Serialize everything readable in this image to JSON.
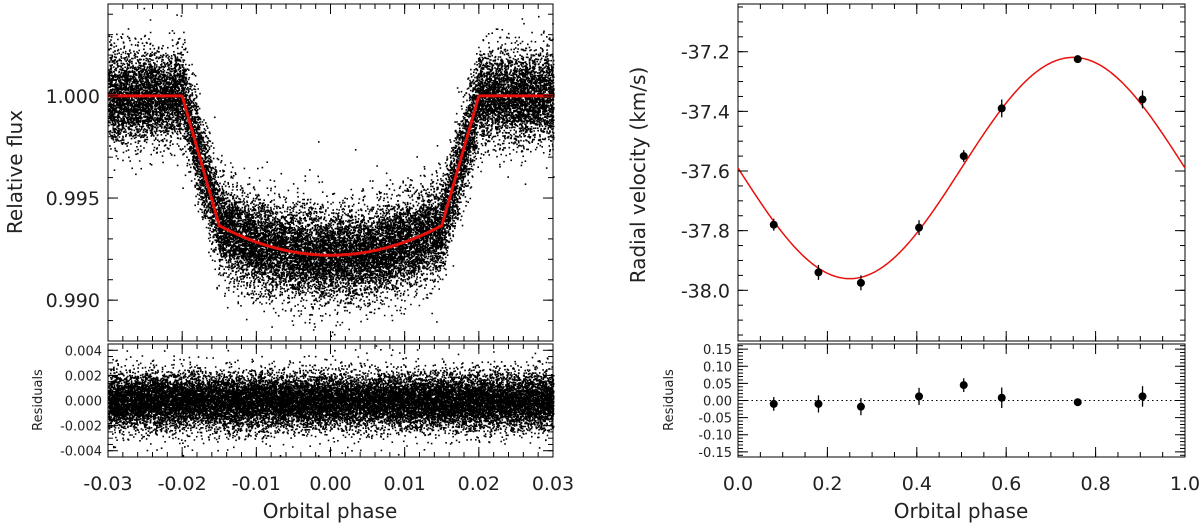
{
  "chart_data": [
    {
      "type": "scatter",
      "panel": "light-curve",
      "ylabel": "Relative flux",
      "xlim": [
        -0.03,
        0.03
      ],
      "ylim": [
        0.988,
        1.0045
      ],
      "yticks": [
        "1.000",
        "0.995",
        "0.990"
      ],
      "ytick_values": [
        1.0,
        0.995,
        0.99
      ],
      "series": [
        {
          "role": "data",
          "color": "#000000",
          "scatter_sigma": 0.0011,
          "samples": 22000
        },
        {
          "role": "model",
          "color": "#e8100a",
          "x": [
            -0.03,
            -0.02,
            -0.015,
            -0.01,
            -0.005,
            0.0,
            0.005,
            0.01,
            0.015,
            0.02,
            0.03
          ],
          "y": [
            1.0,
            1.0,
            0.99365,
            0.99275,
            0.99232,
            0.9922,
            0.99232,
            0.99275,
            0.99365,
            1.0,
            1.0
          ]
        }
      ]
    },
    {
      "type": "scatter",
      "panel": "light-curve-residuals",
      "ylabel": "Residuals",
      "xlabel": "Orbital phase",
      "xlim": [
        -0.03,
        0.03
      ],
      "ylim": [
        -0.0045,
        0.0045
      ],
      "yticks": [
        "0.004",
        "0.002",
        "0.000",
        "-0.002",
        "-0.004"
      ],
      "ytick_values": [
        0.004,
        0.002,
        0.0,
        -0.002,
        -0.004
      ],
      "xticks": [
        "-0.03",
        "-0.02",
        "-0.01",
        "0.00",
        "0.01",
        "0.02",
        "0.03"
      ],
      "xtick_values": [
        -0.03,
        -0.02,
        -0.01,
        0.0,
        0.01,
        0.02,
        0.03
      ],
      "series": [
        {
          "role": "residuals",
          "color": "#000000",
          "scatter_sigma": 0.0011,
          "samples": 22000
        }
      ]
    },
    {
      "type": "scatter",
      "panel": "radial-velocity",
      "ylabel": "Radial velocity (km/s)",
      "xlim": [
        0.0,
        1.0
      ],
      "ylim": [
        -38.17,
        -37.04
      ],
      "yticks": [
        "-37.2",
        "-37.4",
        "-37.6",
        "-37.8",
        "-38.0"
      ],
      "ytick_values": [
        -37.2,
        -37.4,
        -37.6,
        -37.8,
        -38.0
      ],
      "series": [
        {
          "role": "data",
          "color": "#000000",
          "x": [
            0.08,
            0.18,
            0.275,
            0.405,
            0.505,
            0.59,
            0.76,
            0.905
          ],
          "y": [
            -37.78,
            -37.94,
            -37.975,
            -37.79,
            -37.55,
            -37.39,
            -37.225,
            -37.36
          ],
          "err": [
            0.02,
            0.025,
            0.025,
            0.025,
            0.02,
            0.03,
            0.008,
            0.03
          ]
        },
        {
          "role": "model",
          "color": "#e8100a",
          "gamma": -37.59,
          "amplitude": 0.371,
          "phase_of_minimum": 0.25
        }
      ]
    },
    {
      "type": "scatter",
      "panel": "radial-velocity-residuals",
      "ylabel": "Residuals",
      "xlabel": "Orbital phase",
      "xlim": [
        0.0,
        1.0
      ],
      "ylim": [
        -0.165,
        0.165
      ],
      "yticks": [
        "0.15",
        "0.10",
        "0.05",
        "0.00",
        "-0.05",
        "-0.10",
        "-0.15"
      ],
      "ytick_values": [
        0.15,
        0.1,
        0.05,
        0.0,
        -0.05,
        -0.1,
        -0.15
      ],
      "xticks": [
        "0.0",
        "0.2",
        "0.4",
        "0.6",
        "0.8",
        "1.0"
      ],
      "xtick_values": [
        0.0,
        0.2,
        0.4,
        0.6,
        0.8,
        1.0
      ],
      "series": [
        {
          "role": "residuals",
          "color": "#000000",
          "x": [
            0.08,
            0.18,
            0.275,
            0.405,
            0.505,
            0.59,
            0.76,
            0.905
          ],
          "y": [
            -0.01,
            -0.01,
            -0.018,
            0.012,
            0.045,
            0.008,
            -0.005,
            0.012
          ],
          "err": [
            0.02,
            0.025,
            0.025,
            0.025,
            0.02,
            0.03,
            0.008,
            0.03
          ]
        }
      ]
    }
  ]
}
